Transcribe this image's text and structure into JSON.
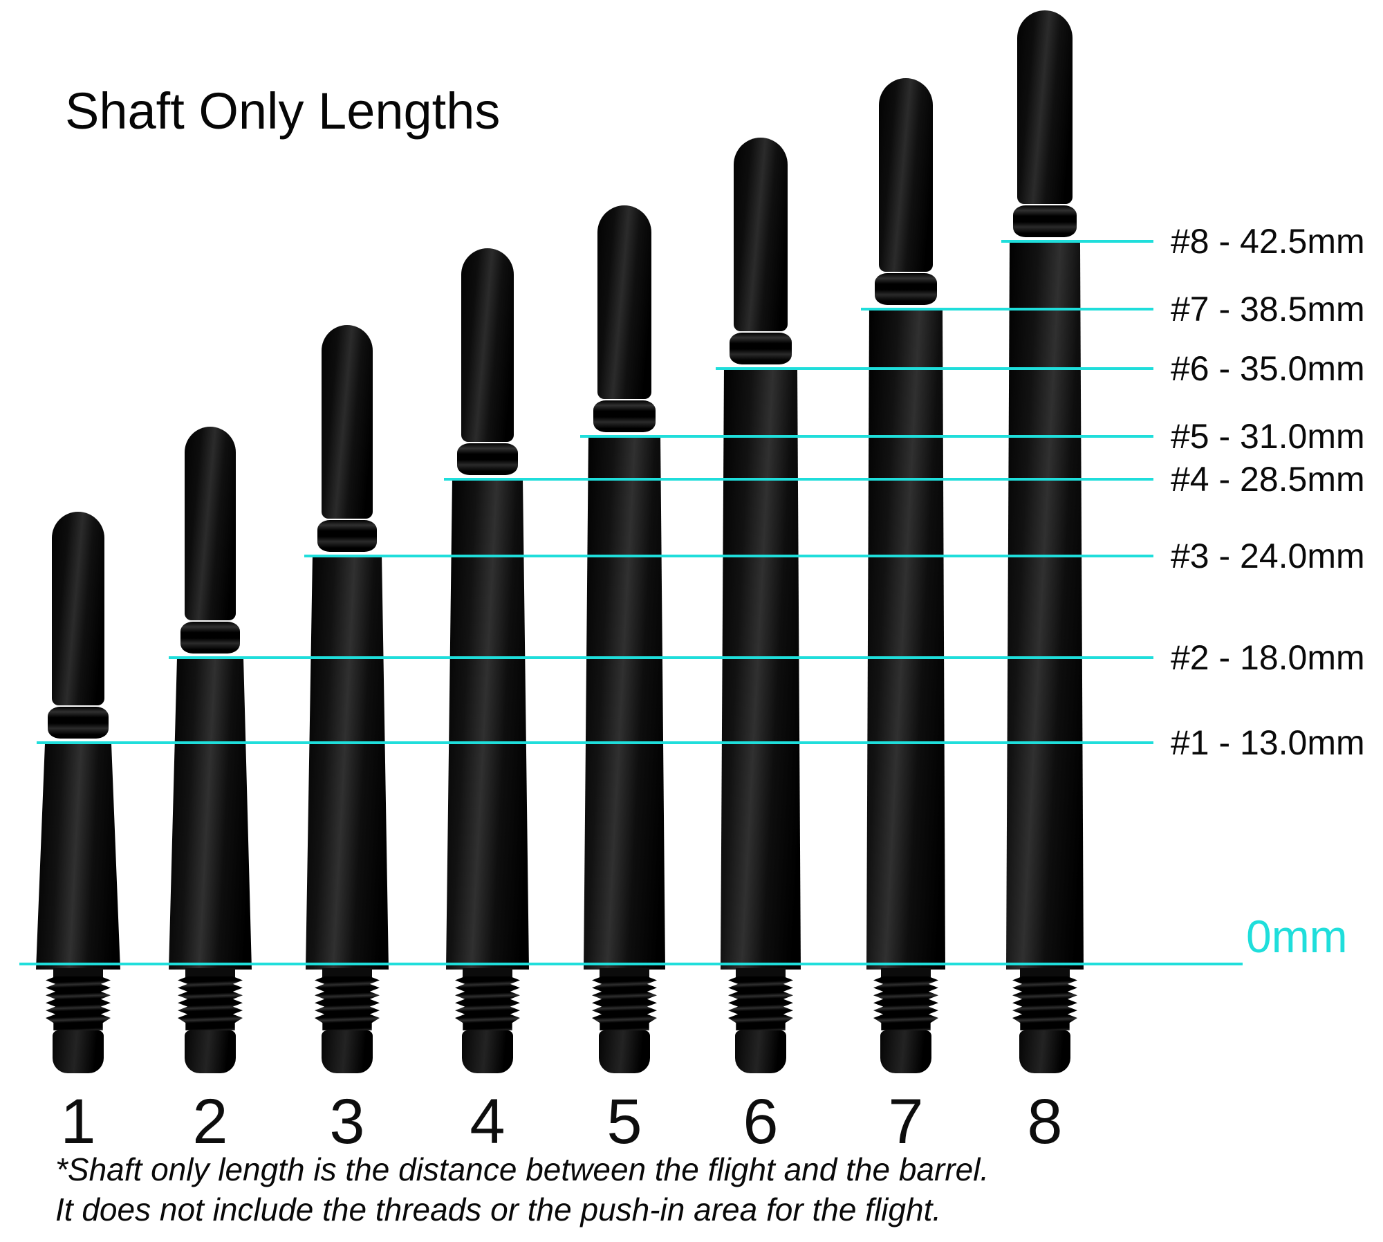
{
  "title": "Shaft Only Lengths",
  "colors": {
    "accent": "#1FDEDB",
    "text": "#0A0A0A",
    "background": "#FFFFFF",
    "shaft": "#0A0A0A"
  },
  "chart_data": {
    "type": "bar",
    "title": "Shaft Only Lengths",
    "categories": [
      "1",
      "2",
      "3",
      "4",
      "5",
      "6",
      "7",
      "8"
    ],
    "series": [
      {
        "name": "Shaft only length",
        "values": [
          13.0,
          18.0,
          24.0,
          28.5,
          31.0,
          35.0,
          38.5,
          42.5
        ]
      }
    ],
    "units": "mm",
    "point_labels": [
      "#1 - 13.0mm",
      "#2 - 18.0mm",
      "#3 - 24.0mm",
      "#4 - 28.5mm",
      "#5 - 31.0mm",
      "#6 - 35.0mm",
      "#7 - 38.5mm",
      "#8 - 42.5mm"
    ],
    "baseline_label": "0mm",
    "xlabel": "",
    "ylabel": "",
    "ylim": [
      0,
      46
    ],
    "grid": false,
    "legend": false
  },
  "footnote": {
    "line1": "*Shaft only length is the distance between the flight and the barrel.",
    "line2": "It does not include the threads or the push-in area for the flight."
  }
}
